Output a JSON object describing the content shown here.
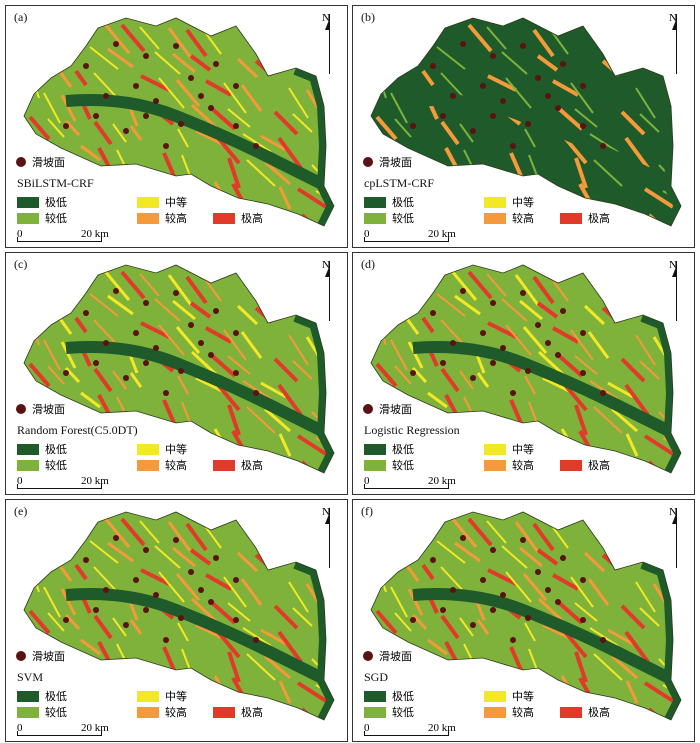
{
  "panels": [
    {
      "letter": "(a)",
      "model": "SBiLSTM-CRF",
      "tint": "mix"
    },
    {
      "letter": "(b)",
      "model": "cpLSTM-CRF",
      "tint": "green"
    },
    {
      "letter": "(c)",
      "model": "Random Forest(C5.0DT)",
      "tint": "orange"
    },
    {
      "letter": "(d)",
      "model": "Logistic Regression",
      "tint": "orange"
    },
    {
      "letter": "(e)",
      "model": "SVM",
      "tint": "mix"
    },
    {
      "letter": "(f)",
      "model": "SGD",
      "tint": "mix"
    }
  ],
  "north_label": "N",
  "landslide_label": "滑坡面",
  "legend": [
    {
      "label": "极低",
      "color": "#1f5a2a"
    },
    {
      "label": "较低",
      "color": "#7fb23a"
    },
    {
      "label": "中等",
      "color": "#f2e826"
    },
    {
      "label": "较高",
      "color": "#f59a3a"
    },
    {
      "label": "极高",
      "color": "#e23a2a"
    }
  ],
  "scale": {
    "start": "0",
    "end": "20 km"
  }
}
